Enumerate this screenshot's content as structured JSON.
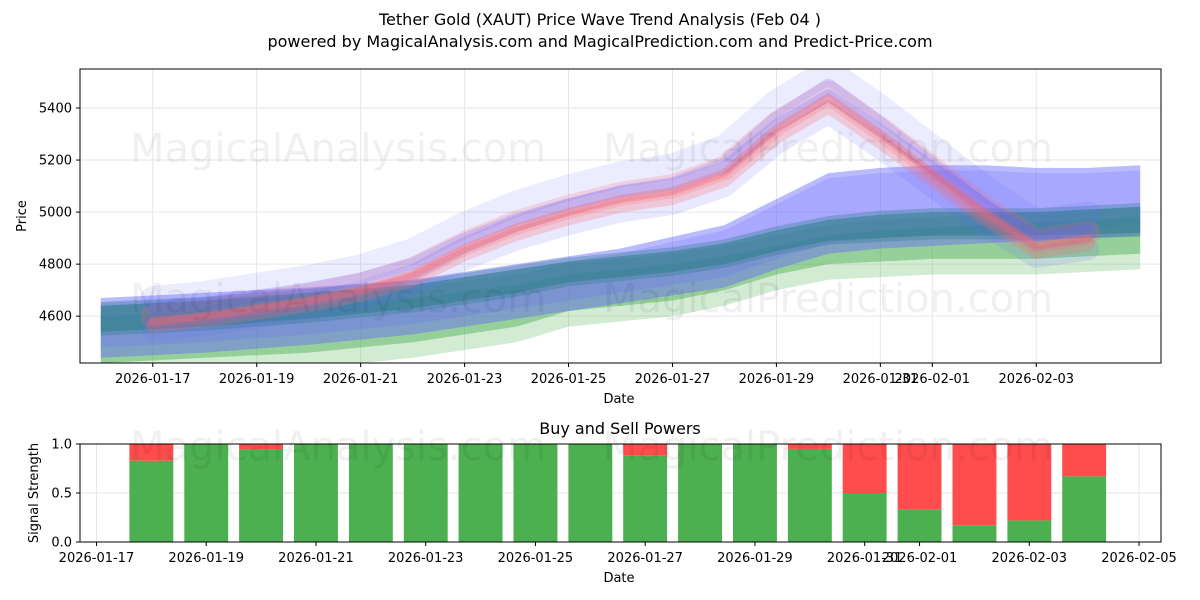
{
  "header": {
    "title": "Tether Gold (XAUT) Price Wave Trend Analysis (Feb 04 )",
    "subtitle": "powered by MagicalAnalysis.com and MagicalPrediction.com and Predict-Price.com"
  },
  "watermarks": [
    "MagicalAnalysis.com",
    "MagicalPrediction.com"
  ],
  "colors": {
    "green_band": "#4caf50",
    "teal_band": "#2f7f8a",
    "blue_band": "#6666ff",
    "red_wave": "#ff6666",
    "buy": "#4caf50",
    "sell": "#ff4d4d",
    "grid": "#e6e6e6"
  },
  "chart_data": [
    {
      "type": "area",
      "title": "",
      "xlabel": "Date",
      "ylabel": "Price",
      "xlim": [
        "2026-01-15.6",
        "2026-02-05.4"
      ],
      "ylim": [
        4420,
        5550
      ],
      "x_ticks": [
        "2026-01-17",
        "2026-01-19",
        "2026-01-21",
        "2026-01-23",
        "2026-01-25",
        "2026-01-27",
        "2026-01-29",
        "2026-01-31",
        "2026-02-01",
        "2026-02-03"
      ],
      "y_ticks": [
        4600,
        4800,
        5000,
        5200,
        5400
      ],
      "grid": true,
      "series": [
        {
          "name": "green band",
          "dates": [
            "2026-01-16",
            "2026-01-18",
            "2026-01-20",
            "2026-01-22",
            "2026-01-24",
            "2026-01-25",
            "2026-01-27",
            "2026-01-28",
            "2026-01-29",
            "2026-01-30",
            "2026-01-31",
            "2026-02-01",
            "2026-02-02",
            "2026-02-03",
            "2026-02-04",
            "2026-02-05"
          ],
          "upper": [
            4600,
            4620,
            4640,
            4670,
            4720,
            4760,
            4800,
            4830,
            4870,
            4910,
            4930,
            4940,
            4950,
            4960,
            4970,
            4980
          ],
          "lower": [
            4420,
            4440,
            4460,
            4500,
            4560,
            4620,
            4660,
            4700,
            4760,
            4800,
            4810,
            4820,
            4820,
            4820,
            4830,
            4840
          ]
        },
        {
          "name": "teal band",
          "dates": [
            "2026-01-16",
            "2026-01-18",
            "2026-01-20",
            "2026-01-22",
            "2026-01-24",
            "2026-01-25",
            "2026-01-27",
            "2026-01-28",
            "2026-01-29",
            "2026-01-30",
            "2026-01-31",
            "2026-02-01",
            "2026-02-02",
            "2026-02-03",
            "2026-02-04",
            "2026-02-05"
          ],
          "upper": [
            4640,
            4660,
            4690,
            4720,
            4780,
            4810,
            4850,
            4880,
            4930,
            4970,
            4990,
            5000,
            5000,
            5000,
            5010,
            5020
          ],
          "lower": [
            4540,
            4560,
            4590,
            4630,
            4690,
            4730,
            4770,
            4800,
            4850,
            4890,
            4900,
            4910,
            4910,
            4910,
            4915,
            4920
          ]
        },
        {
          "name": "blue band",
          "dates": [
            "2026-01-16",
            "2026-01-18",
            "2026-01-20",
            "2026-01-22",
            "2026-01-24",
            "2026-01-26",
            "2026-01-28",
            "2026-01-29",
            "2026-01-30",
            "2026-01-31",
            "2026-02-01",
            "2026-02-02",
            "2026-02-03",
            "2026-02-04",
            "2026-02-05"
          ],
          "upper": [
            4670,
            4690,
            4710,
            4740,
            4800,
            4860,
            4950,
            5050,
            5150,
            5170,
            5180,
            5180,
            5170,
            5170,
            5180
          ],
          "lower": [
            4440,
            4460,
            4490,
            4530,
            4590,
            4650,
            4710,
            4780,
            4840,
            4860,
            4870,
            4880,
            4890,
            4900,
            4910
          ]
        },
        {
          "name": "price wave",
          "dates": [
            "2026-01-17",
            "2026-01-18",
            "2026-01-19",
            "2026-01-20",
            "2026-01-21",
            "2026-01-22",
            "2026-01-23",
            "2026-01-24",
            "2026-01-25",
            "2026-01-26",
            "2026-01-27",
            "2026-01-28",
            "2026-01-29",
            "2026-01-30",
            "2026-01-31",
            "2026-02-01",
            "2026-02-02",
            "2026-02-03",
            "2026-02-04"
          ],
          "values": [
            4580,
            4600,
            4630,
            4660,
            4700,
            4760,
            4860,
            4940,
            5000,
            5050,
            5080,
            5150,
            5320,
            5440,
            5300,
            5150,
            5000,
            4870,
            4900
          ]
        }
      ]
    },
    {
      "type": "bar",
      "title": "Buy and Sell Powers",
      "xlabel": "Date",
      "ylabel": "Signal Strength",
      "ylim": [
        0,
        1.0
      ],
      "y_ticks": [
        "0.0",
        "0.5",
        "1.0"
      ],
      "x_ticks": [
        "2026-01-17",
        "2026-01-19",
        "2026-01-21",
        "2026-01-23",
        "2026-01-25",
        "2026-01-27",
        "2026-01-29",
        "2026-01-31",
        "2026-02-01",
        "2026-02-03",
        "2026-02-05"
      ],
      "categories": [
        "2026-01-18",
        "2026-01-19",
        "2026-01-20",
        "2026-01-21",
        "2026-01-22",
        "2026-01-23",
        "2026-01-24",
        "2026-01-25",
        "2026-01-26",
        "2026-01-27",
        "2026-01-28",
        "2026-01-29",
        "2026-01-30",
        "2026-01-31",
        "2026-02-01",
        "2026-02-02",
        "2026-02-03",
        "2026-02-04"
      ],
      "series": [
        {
          "name": "Buy",
          "values": [
            0.83,
            1.0,
            0.94,
            1.0,
            1.0,
            1.0,
            1.0,
            1.0,
            1.0,
            0.88,
            1.0,
            1.0,
            0.95,
            0.5,
            0.33,
            0.17,
            0.22,
            0.67
          ]
        },
        {
          "name": "Sell",
          "values": [
            0.17,
            0.0,
            0.06,
            0.0,
            0.0,
            0.0,
            0.0,
            0.0,
            0.0,
            0.12,
            0.0,
            0.0,
            0.05,
            0.5,
            0.67,
            0.83,
            0.78,
            0.33
          ]
        }
      ]
    }
  ]
}
